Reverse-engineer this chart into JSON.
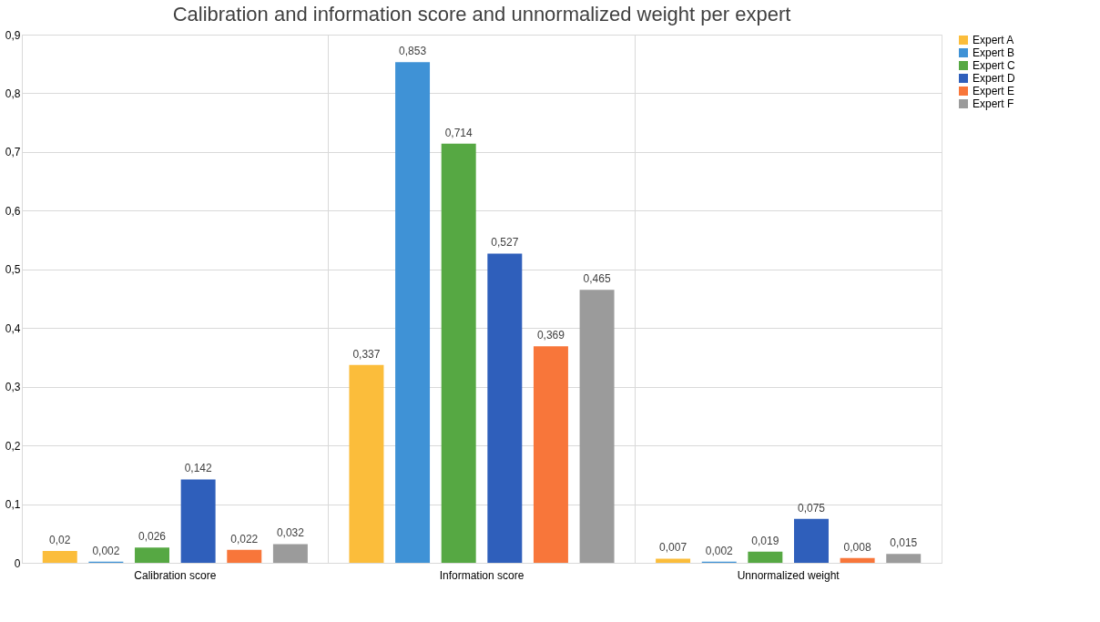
{
  "chart_data": {
    "type": "bar",
    "title": "Calibration and information score and unnormalized weight per expert",
    "categories": [
      "Calibration score",
      "Information score",
      "Unnormalized weight"
    ],
    "series": [
      {
        "name": "Expert A",
        "color": "#fbbd3b",
        "values": [
          0.02,
          0.337,
          0.007
        ],
        "value_labels": [
          "0,02",
          "0,337",
          "0,007"
        ]
      },
      {
        "name": "Expert B",
        "color": "#3f92d6",
        "values": [
          0.002,
          0.853,
          0.002
        ],
        "value_labels": [
          "0,002",
          "0,853",
          "0,002"
        ]
      },
      {
        "name": "Expert C",
        "color": "#56a843",
        "values": [
          0.026,
          0.714,
          0.019
        ],
        "value_labels": [
          "0,026",
          "0,714",
          "0,019"
        ]
      },
      {
        "name": "Expert D",
        "color": "#2f5fbb",
        "values": [
          0.142,
          0.527,
          0.075
        ],
        "value_labels": [
          "0,142",
          "0,527",
          "0,075"
        ]
      },
      {
        "name": "Expert E",
        "color": "#f8763a",
        "values": [
          0.022,
          0.369,
          0.008
        ],
        "value_labels": [
          "0,022",
          "0,369",
          "0,008"
        ]
      },
      {
        "name": "Expert F",
        "color": "#9b9b9b",
        "values": [
          0.032,
          0.465,
          0.015
        ],
        "value_labels": [
          "0,032",
          "0,465",
          "0,015"
        ]
      }
    ],
    "ylim": [
      0,
      0.9
    ],
    "yticks": [
      0,
      {
        "value": 0.1,
        "label": "0,1"
      },
      {
        "value": 0.2,
        "label": "0,2"
      },
      {
        "value": 0.3,
        "label": "0,3"
      },
      {
        "value": 0.4,
        "label": "0,4"
      },
      {
        "value": 0.5,
        "label": "0,5"
      },
      {
        "value": 0.6,
        "label": "0,6"
      },
      {
        "value": 0.7,
        "label": "0,7"
      },
      {
        "value": 0.8,
        "label": "0,8"
      },
      {
        "value": 0.9,
        "label": "0,9"
      }
    ],
    "grid": true,
    "legend": "right"
  }
}
